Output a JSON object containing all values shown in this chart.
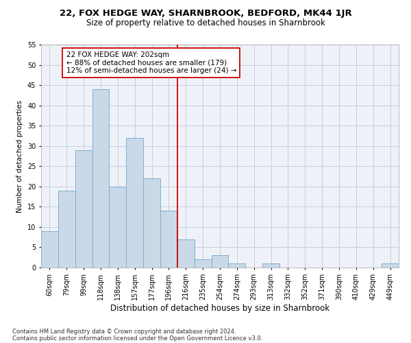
{
  "title": "22, FOX HEDGE WAY, SHARNBROOK, BEDFORD, MK44 1JR",
  "subtitle": "Size of property relative to detached houses in Sharnbrook",
  "xlabel": "Distribution of detached houses by size in Sharnbrook",
  "ylabel": "Number of detached properties",
  "categories": [
    "60sqm",
    "79sqm",
    "99sqm",
    "118sqm",
    "138sqm",
    "157sqm",
    "177sqm",
    "196sqm",
    "216sqm",
    "235sqm",
    "254sqm",
    "274sqm",
    "293sqm",
    "313sqm",
    "332sqm",
    "352sqm",
    "371sqm",
    "390sqm",
    "410sqm",
    "429sqm",
    "449sqm"
  ],
  "values": [
    9,
    19,
    29,
    44,
    20,
    32,
    22,
    14,
    7,
    2,
    3,
    1,
    0,
    1,
    0,
    0,
    0,
    0,
    0,
    0,
    1
  ],
  "bar_color": "#c9d9e8",
  "bar_edge_color": "#7fafd0",
  "grid_color": "#c0c8d8",
  "background_color": "#eef2f8",
  "vline_x_index": 7,
  "vline_color": "#cc0000",
  "annotation_text": "22 FOX HEDGE WAY: 202sqm\n← 88% of detached houses are smaller (179)\n12% of semi-detached houses are larger (24) →",
  "annotation_box_color": "#ffffff",
  "annotation_box_edge_color": "#cc0000",
  "ylim": [
    0,
    55
  ],
  "yticks": [
    0,
    5,
    10,
    15,
    20,
    25,
    30,
    35,
    40,
    45,
    50,
    55
  ],
  "footer1": "Contains HM Land Registry data © Crown copyright and database right 2024.",
  "footer2": "Contains public sector information licensed under the Open Government Licence v3.0.",
  "title_fontsize": 9.5,
  "subtitle_fontsize": 8.5,
  "xlabel_fontsize": 8.5,
  "ylabel_fontsize": 7.5,
  "tick_fontsize": 7,
  "annotation_fontsize": 7.5,
  "footer_fontsize": 6
}
